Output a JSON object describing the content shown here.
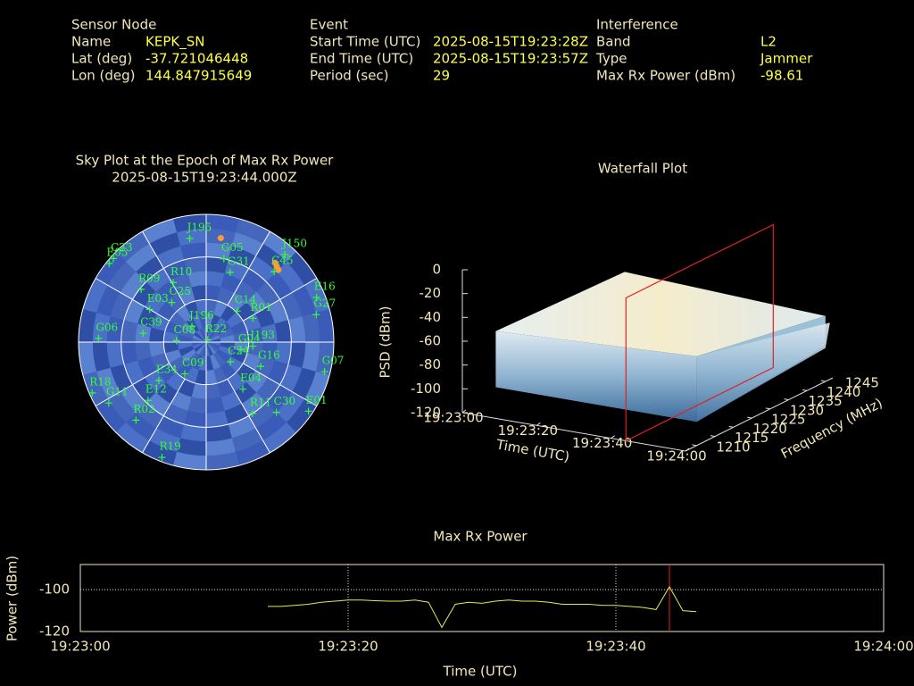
{
  "header": {
    "columns": [
      {
        "title": "Sensor Node",
        "rows": [
          [
            "Name",
            "KEPK_SN"
          ],
          [
            "Lat (deg)",
            "-37.721046448"
          ],
          [
            "Lon (deg)",
            "144.847915649"
          ]
        ]
      },
      {
        "title": "Event",
        "rows": [
          [
            "Start Time (UTC)",
            "2025-08-15T19:23:28Z"
          ],
          [
            "End Time (UTC)",
            "2025-08-15T19:23:57Z"
          ],
          [
            "Period (sec)",
            "29"
          ]
        ]
      },
      {
        "title": "Interference",
        "rows": [
          [
            "Band",
            "L2"
          ],
          [
            "Type",
            "Jammer"
          ],
          [
            "Max Rx Power (dBm)",
            "-98.61"
          ]
        ]
      }
    ]
  },
  "chart_data": [
    {
      "type": "polar_scatter",
      "title": "Sky Plot at the Epoch of Max Rx Power",
      "subtitle": "2025-08-15T19:23:44.000Z",
      "rlim": [
        0,
        90
      ],
      "rings": [
        0,
        30,
        60
      ],
      "color": "#33ff33",
      "names": [
        "J195",
        "C23",
        "E05",
        "G05",
        "R10",
        "G31",
        "C45",
        "J150",
        "E16",
        "G27",
        "C14",
        "R01",
        "C25",
        "E03",
        "R09",
        "G06",
        "C39",
        "C08",
        "J196",
        "R22",
        "G04",
        "J193",
        "C24",
        "G16",
        "G07",
        "C09",
        "E34",
        "E12",
        "E04",
        "R18",
        "G11",
        "C30",
        "R11",
        "E01",
        "R02",
        "R19"
      ],
      "az": [
        351,
        312,
        309,
        12,
        331,
        19,
        44,
        42,
        68,
        76,
        45,
        63,
        319,
        300,
        309,
        272,
        278,
        273,
        318,
        35,
        102,
        95,
        129,
        114,
        104,
        214,
        231,
        225,
        142,
        246,
        238,
        135,
        147,
        124,
        222,
        201
      ],
      "el": [
        16,
        2,
        2,
        30,
        42,
        38,
        21,
        7,
        6,
        10,
        59,
        53,
        53,
        44,
        31,
        14,
        45,
        69,
        75,
        88,
        65,
        57,
        68,
        48,
        4,
        63,
        47,
        32,
        48,
        2,
        9,
        20,
        30,
        3,
        16,
        3
      ],
      "interference": {
        "color": "#ff9933",
        "az": [
          8,
          41,
          43,
          45
        ],
        "el": [
          16,
          16,
          17,
          18
        ]
      }
    },
    {
      "type": "surface3d",
      "title": "Waterfall Plot",
      "zlabel": "PSD (dBm)",
      "xlabel": "Time (UTC)",
      "ylabel": "Frequency (MHz)",
      "xlim": [
        "19:23:00",
        "19:24:00"
      ],
      "xticks": [
        "19:23:00",
        "19:23:20",
        "19:23:40",
        "19:24:00"
      ],
      "ylim": [
        1207,
        1247
      ],
      "yticks": [
        1210,
        1215,
        1220,
        1225,
        1230,
        1235,
        1240,
        1245
      ],
      "zlim": [
        -120,
        0
      ],
      "zticks": [
        0,
        -20,
        -40,
        -60,
        -80,
        -100,
        -120
      ],
      "cursor": "19:23:44",
      "cursor_color": "#dd2222"
    },
    {
      "type": "line",
      "title": "Max Rx Power",
      "ylabel": "Power (dBm)",
      "xlabel": "Time (UTC)",
      "color": "#e8e850",
      "xlim": [
        "19:23:00",
        "19:24:00"
      ],
      "xticks": [
        "19:23:00",
        "19:23:20",
        "19:23:40",
        "19:24:00"
      ],
      "ylim": [
        -120,
        -88
      ],
      "yticks": [
        -100,
        -120
      ],
      "grid": true,
      "cursor": "19:23:44",
      "cursor_color": "#dd2222",
      "x": [
        "19:23:14",
        "19:23:15",
        "19:23:16",
        "19:23:17",
        "19:23:18",
        "19:23:19",
        "19:23:20",
        "19:23:21",
        "19:23:22",
        "19:23:23",
        "19:23:24",
        "19:23:25",
        "19:23:26",
        "19:23:27",
        "19:23:28",
        "19:23:29",
        "19:23:30",
        "19:23:31",
        "19:23:32",
        "19:23:33",
        "19:23:34",
        "19:23:35",
        "19:23:36",
        "19:23:37",
        "19:23:38",
        "19:23:39",
        "19:23:40",
        "19:23:41",
        "19:23:42",
        "19:23:43",
        "19:23:44",
        "19:23:45",
        "19:23:46"
      ],
      "values": [
        -108,
        -108,
        -107.5,
        -107,
        -106,
        -105.5,
        -105,
        -105,
        -105.3,
        -105.5,
        -105.5,
        -105,
        -106,
        -118,
        -107,
        -106,
        -106.5,
        -105.5,
        -105,
        -105.5,
        -105.5,
        -106,
        -107,
        -107,
        -107,
        -107.5,
        -107.5,
        -108,
        -108.5,
        -109.5,
        -98.61,
        -110,
        -110.5
      ]
    }
  ]
}
